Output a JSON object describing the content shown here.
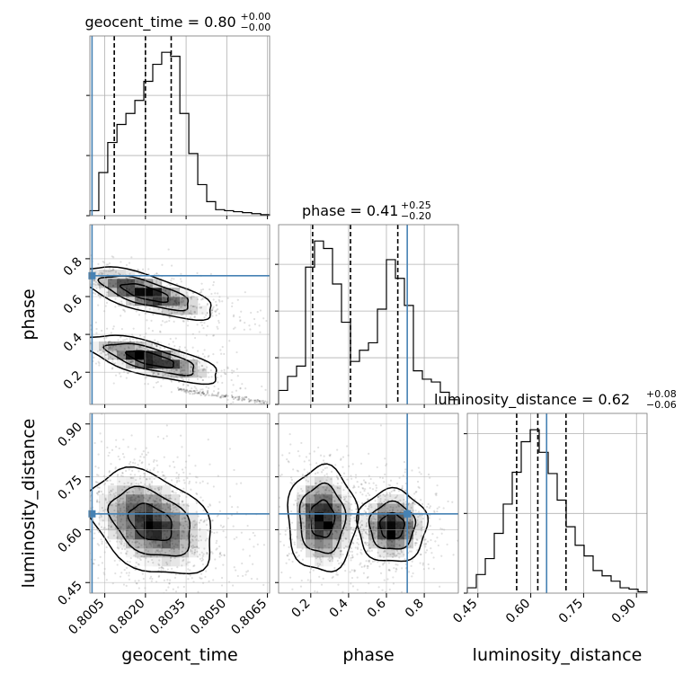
{
  "chart_data": {
    "type": "corner",
    "parameters": [
      "geocent_time",
      "phase",
      "luminosity_distance"
    ],
    "truths": {
      "geocent_time": 0.80003,
      "phase": 0.71,
      "luminosity_distance": 0.645
    },
    "truth_color": "#4682b4",
    "titles": [
      {
        "param": "geocent_time",
        "text": "geocent_time = 0.80",
        "sup": "+0.00",
        "sub": "−0.00"
      },
      {
        "param": "phase",
        "text": "phase = 0.41",
        "sup": "+0.25",
        "sub": "−0.20"
      },
      {
        "param": "luminosity_distance",
        "text": "luminosity_distance = 0.62",
        "sup": "+0.08",
        "sub": "−0.06"
      }
    ],
    "axes": {
      "geocent_time": {
        "range": [
          0.79995,
          0.80658
        ],
        "ticks": [
          0.8005,
          0.802,
          0.8035,
          0.805,
          0.8065
        ],
        "tick_labels": [
          "0.8005",
          "0.8020",
          "0.8035",
          "0.8050",
          "0.8065"
        ],
        "label": "geocent_time"
      },
      "phase": {
        "range": [
          0.03,
          0.98
        ],
        "ticks": [
          0.2,
          0.4,
          0.6,
          0.8
        ],
        "tick_labels": [
          "0.2",
          "0.4",
          "0.6",
          "0.8"
        ],
        "label": "phase"
      },
      "luminosity_distance": {
        "range": [
          0.42,
          0.93
        ],
        "ticks": [
          0.45,
          0.6,
          0.75,
          0.9
        ],
        "tick_labels": [
          "0.45",
          "0.60",
          "0.75",
          "0.90"
        ],
        "label": "luminosity_distance"
      }
    },
    "marginals": {
      "geocent_time": {
        "bin_edges": [
          0.79995,
          0.80028,
          0.80061,
          0.80095,
          0.80128,
          0.80161,
          0.80194,
          0.80227,
          0.8026,
          0.80293,
          0.80327,
          0.8036,
          0.80393,
          0.80426,
          0.80459,
          0.80492,
          0.80525,
          0.80558,
          0.80592,
          0.80625,
          0.80658
        ],
        "counts": [
          5,
          43,
          73,
          91,
          102,
          115,
          134,
          151,
          163,
          159,
          102,
          62,
          31,
          14,
          6,
          5,
          4,
          3,
          2,
          1
        ],
        "quantiles": [
          0.80085,
          0.802,
          0.80295
        ],
        "grid_yticks": [
          60,
          120
        ]
      },
      "phase": {
        "bin_edges": [
          0.03,
          0.0775,
          0.125,
          0.1725,
          0.22,
          0.2675,
          0.315,
          0.3625,
          0.41,
          0.4575,
          0.505,
          0.5525,
          0.6,
          0.6475,
          0.695,
          0.7425,
          0.79,
          0.8375,
          0.885,
          0.9325,
          0.98
        ],
        "counts": [
          15,
          30,
          41,
          147,
          175,
          167,
          129,
          88,
          46,
          58,
          66,
          102,
          155,
          135,
          106,
          36,
          27,
          24,
          13,
          5
        ],
        "quantiles": [
          0.21,
          0.41,
          0.66
        ],
        "grid_yticks": [
          50,
          100,
          150
        ]
      },
      "luminosity_distance": {
        "bin_edges": [
          0.42,
          0.4455,
          0.471,
          0.4965,
          0.522,
          0.5475,
          0.573,
          0.5985,
          0.624,
          0.6495,
          0.675,
          0.7005,
          0.726,
          0.7515,
          0.777,
          0.8025,
          0.828,
          0.8535,
          0.879,
          0.9045,
          0.93
        ],
        "counts": [
          4,
          14,
          26,
          45,
          67,
          91,
          114,
          123,
          106,
          90,
          70,
          50,
          36,
          28,
          17,
          13,
          9,
          4,
          3,
          1
        ],
        "quantiles": [
          0.56,
          0.62,
          0.7
        ],
        "grid_yticks": [
          60,
          120
        ]
      }
    },
    "joint_modes": [
      {
        "x": "geocent_time",
        "y": "phase",
        "cx": 0.802,
        "cy": 0.62,
        "sx": 0.0011,
        "sy": 0.06,
        "rho": -0.7,
        "w": 0.5
      },
      {
        "x": "geocent_time",
        "y": "phase",
        "cx": 0.8022,
        "cy": 0.27,
        "sx": 0.0011,
        "sy": 0.055,
        "rho": -0.7,
        "w": 0.5
      },
      {
        "x": "geocent_time",
        "y": "luminosity_distance",
        "cx": 0.8022,
        "cy": 0.62,
        "sx": 0.001,
        "sy": 0.065,
        "rho": -0.35,
        "w": 1.0
      },
      {
        "x": "phase",
        "y": "luminosity_distance",
        "cx": 0.26,
        "cy": 0.63,
        "sx": 0.08,
        "sy": 0.065,
        "rho": 0.0,
        "w": 0.5
      },
      {
        "x": "phase",
        "y": "luminosity_distance",
        "cx": 0.63,
        "cy": 0.61,
        "sx": 0.08,
        "sy": 0.045,
        "rho": 0.0,
        "w": 0.5
      }
    ]
  }
}
